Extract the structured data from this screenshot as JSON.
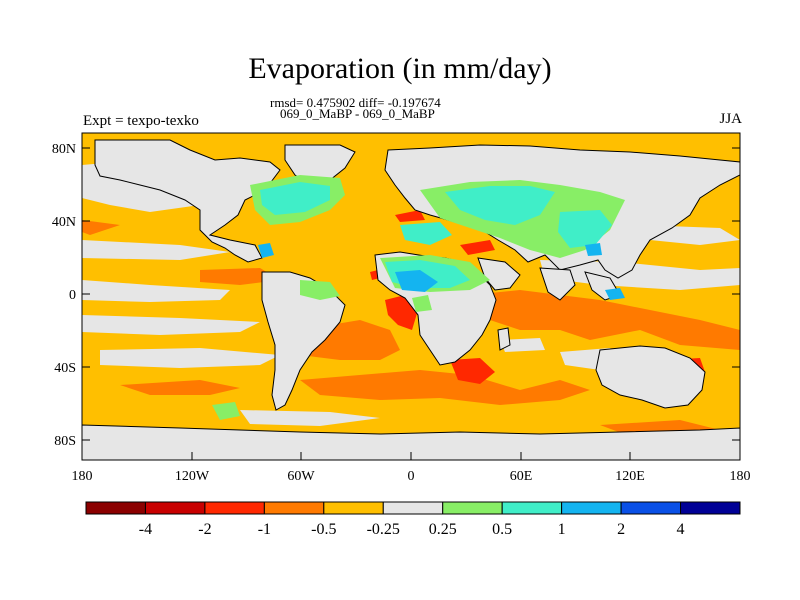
{
  "title": "Evaporation (in mm/day)",
  "stats_line": "rmsd= 0.475902 diff= -0.197674",
  "subtitle": "069_0_MaBP - 069_0_MaBP",
  "left_label": "Expt = texpo-texko",
  "right_label": "JJA",
  "colors": {
    "land": "#e6e6e6",
    "ocean_base": "#ffbf00",
    "frame": "#000000"
  },
  "map": {
    "lat_ticks": [
      "80N",
      "40N",
      "0",
      "40S",
      "80S"
    ],
    "lon_ticks": [
      "180",
      "120W",
      "60W",
      "0",
      "60E",
      "120E",
      "180"
    ]
  },
  "legend": {
    "colors": [
      "#8b0000",
      "#c80000",
      "#ff2800",
      "#ff7a00",
      "#ffbf00",
      "#e6e6e6",
      "#88ee66",
      "#40eec8",
      "#14b4f0",
      "#0a50e6",
      "#000096"
    ],
    "labels": [
      "-4",
      "-2",
      "-1",
      "-0.5",
      "-0.25",
      "0.25",
      "0.5",
      "1",
      "2",
      "4"
    ]
  }
}
